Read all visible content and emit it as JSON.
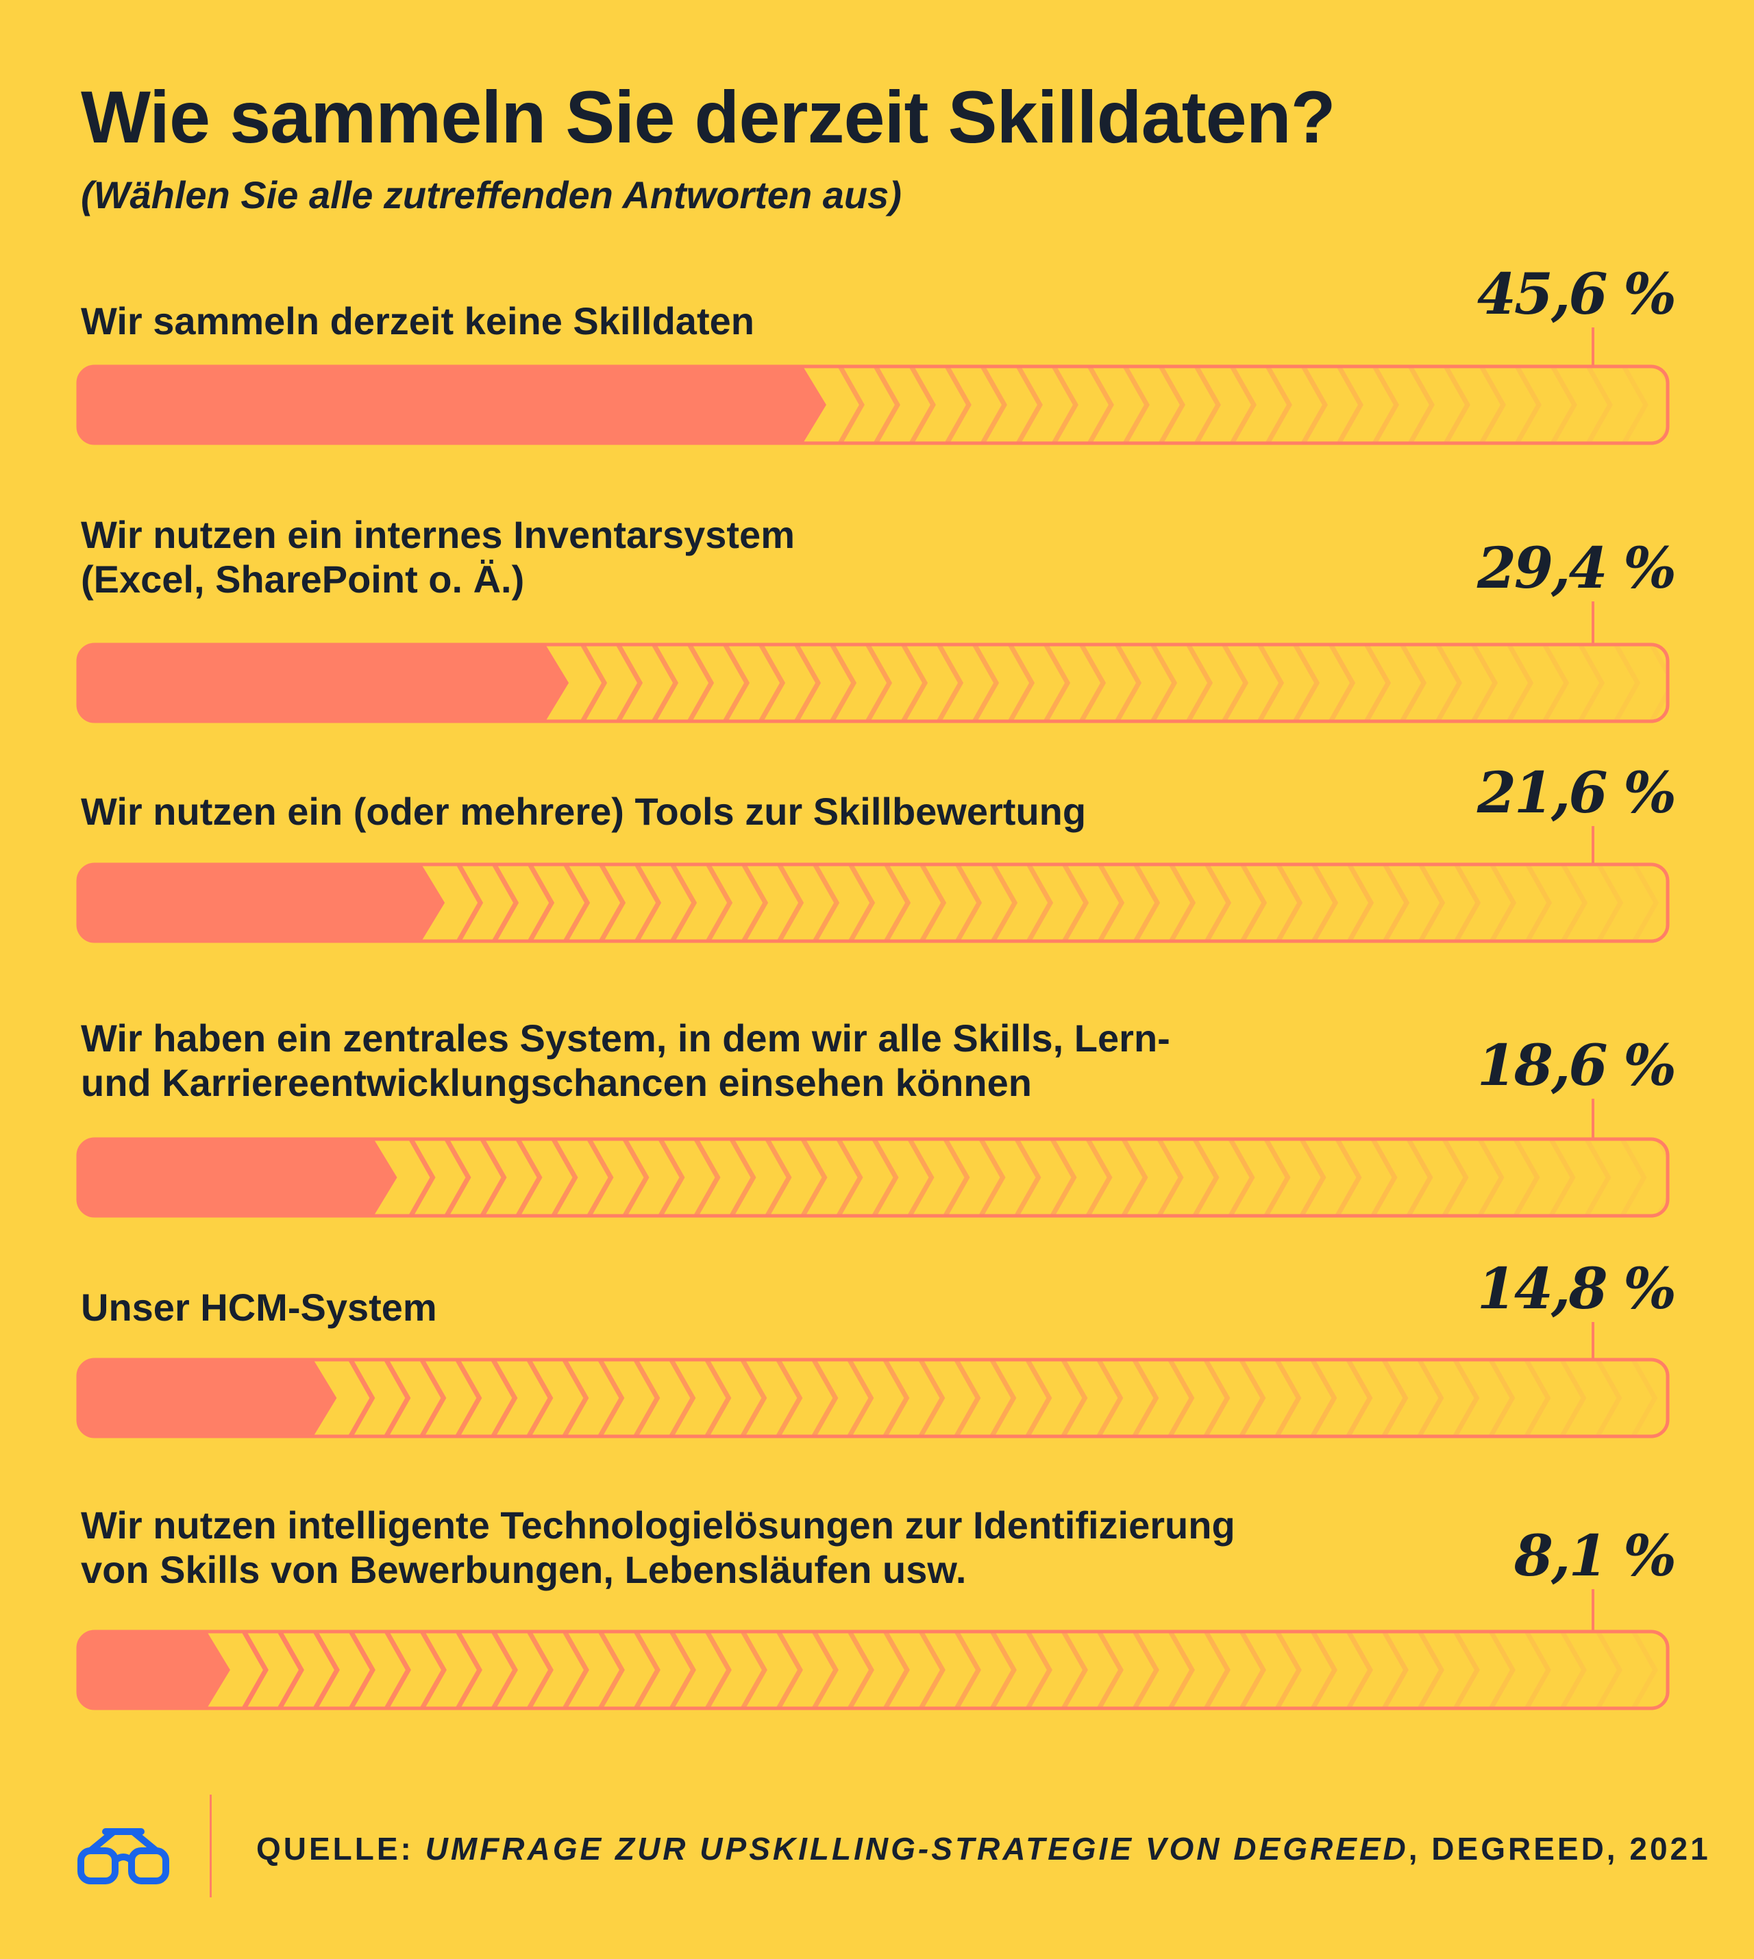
{
  "chart_data": {
    "type": "bar",
    "orientation": "horizontal",
    "title": "Wie sammeln Sie derzeit Skilldaten?",
    "subtitle": "(Wählen Sie alle zutreffenden Antworten aus)",
    "xlim": [
      0,
      100
    ],
    "categories": [
      [
        "Wir sammeln derzeit keine Skilldaten"
      ],
      [
        "Wir nutzen ein internes Inventarsystem",
        "(Excel, SharePoint o. Ä.)"
      ],
      [
        "Wir nutzen ein (oder mehrere) Tools zur Skillbewertung"
      ],
      [
        "Wir haben ein zentrales System, in dem wir alle Skills, Lern-",
        "und Karriereentwicklungschancen einsehen können"
      ],
      [
        "Unser HCM-System"
      ],
      [
        "Wir nutzen intelligente Technologielösungen zur Identifizierung",
        "von Skills von Bewerbungen, Lebensläufen usw."
      ]
    ],
    "values": [
      45.6,
      29.4,
      21.6,
      18.6,
      14.8,
      8.1
    ],
    "value_labels": [
      "45,6 %",
      "29,4 %",
      "21,6 %",
      "18,6 %",
      "14,8 %",
      "8,1 %"
    ]
  },
  "colors": {
    "background": "#FDD243",
    "bar_fill": "#FF7F66",
    "bar_outline": "#FF7F66",
    "text": "#17202E",
    "logo": "#1A65EA"
  },
  "footer": {
    "logo_icon": "glasses-icon",
    "source_prefix": "QUELLE: ",
    "source_title": "UMFRAGE ZUR UPSKILLING-STRATEGIE VON DEGREED",
    "source_suffix": ", DEGREED, 2021"
  }
}
